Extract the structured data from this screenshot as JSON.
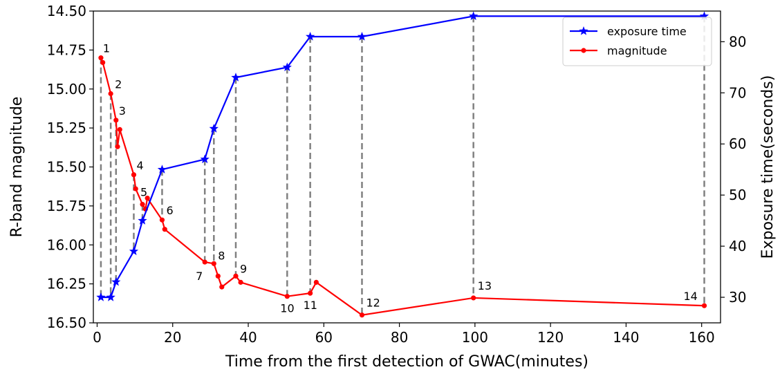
{
  "chart_data": {
    "type": "line",
    "title": "",
    "xlabel": "Time from the first detection of GWAC(minutes)",
    "ylabel_left": "R-band magnitude",
    "ylabel_right": "Exposure time(seconds)",
    "xlim": [
      -1,
      165
    ],
    "ylim_left": [
      16.5,
      14.5
    ],
    "ylim_left_inverted": true,
    "ylim_right": [
      25,
      86
    ],
    "x_ticks": [
      "0",
      "20",
      "40",
      "60",
      "80",
      "100",
      "120",
      "140",
      "160"
    ],
    "x_tick_values": [
      0,
      20,
      40,
      60,
      80,
      100,
      120,
      140,
      160
    ],
    "y_left_ticks": [
      "14.50",
      "14.75",
      "15.00",
      "15.25",
      "15.50",
      "15.75",
      "16.00",
      "16.25",
      "16.50"
    ],
    "y_left_tick_values": [
      14.5,
      14.75,
      15.0,
      15.25,
      15.5,
      15.75,
      16.0,
      16.25,
      16.5
    ],
    "y_right_ticks": [
      "30",
      "40",
      "50",
      "60",
      "70",
      "80"
    ],
    "y_right_tick_values": [
      30,
      40,
      50,
      60,
      70,
      80
    ],
    "legend_position": "top-right",
    "grid": false,
    "series": [
      {
        "name": "exposure time",
        "axis": "right",
        "color": "#0000ff",
        "marker": "star",
        "points": [
          [
            1.0,
            30
          ],
          [
            3.6,
            30
          ],
          [
            5.0,
            33
          ],
          [
            9.7,
            39
          ],
          [
            12.0,
            45
          ],
          [
            17.2,
            55
          ],
          [
            28.5,
            57
          ],
          [
            30.9,
            63
          ],
          [
            36.7,
            73
          ],
          [
            50.3,
            75
          ],
          [
            56.4,
            81
          ],
          [
            70.1,
            81
          ],
          [
            99.6,
            85
          ],
          [
            160.7,
            85
          ]
        ]
      },
      {
        "name": "magnitude",
        "axis": "left",
        "color": "#ff0000",
        "marker": "dot",
        "points": [
          [
            1.0,
            14.8
          ],
          [
            1.5,
            14.83
          ],
          [
            3.6,
            15.03
          ],
          [
            5.0,
            15.2
          ],
          [
            5.4,
            15.37
          ],
          [
            6.0,
            15.26
          ],
          [
            9.7,
            15.55
          ],
          [
            10.2,
            15.64
          ],
          [
            12.0,
            15.74
          ],
          [
            12.8,
            15.77
          ],
          [
            13.3,
            15.7
          ],
          [
            17.2,
            15.84
          ],
          [
            17.9,
            15.9
          ],
          [
            28.5,
            16.11
          ],
          [
            30.9,
            16.12
          ],
          [
            32.0,
            16.2
          ],
          [
            33.0,
            16.27
          ],
          [
            36.7,
            16.2
          ],
          [
            38.0,
            16.24
          ],
          [
            50.3,
            16.33
          ],
          [
            56.4,
            16.31
          ],
          [
            58.0,
            16.24
          ],
          [
            70.1,
            16.45
          ],
          [
            99.6,
            16.34
          ],
          [
            160.7,
            16.39
          ]
        ]
      }
    ],
    "reference_lines_x": [
      1.0,
      3.6,
      5.0,
      9.7,
      12.0,
      17.2,
      28.5,
      30.9,
      36.7,
      50.3,
      56.4,
      70.1,
      99.6,
      160.7
    ],
    "reference_line_color": "#808080",
    "annotations": [
      "1",
      "2",
      "3",
      "4",
      "5",
      "6",
      "7",
      "8",
      "9",
      "10",
      "11",
      "12",
      "13",
      "14"
    ]
  }
}
